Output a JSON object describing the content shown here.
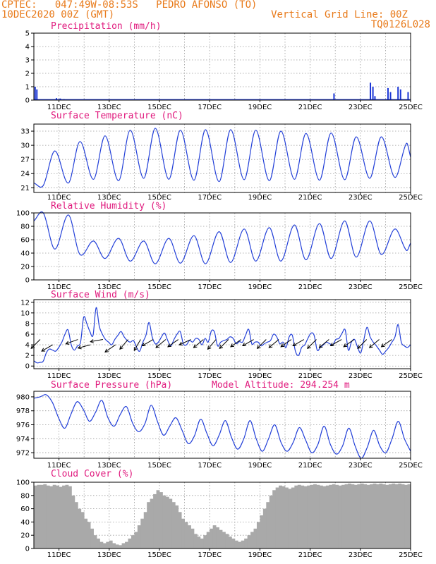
{
  "header": {
    "station": "CPTEC:   047:49W-08:53S   PEDRO AFONSO (TO)",
    "date": "10DEC2020 00Z (GMT)",
    "grid_note": "Vertical Grid Line: 00Z",
    "model_code": "TQ0126L028"
  },
  "colors": {
    "header": "#e87a1a",
    "title": "#e0197d",
    "line": "#2340d8",
    "bar": "#1a35d6",
    "cloud": "#a9a9a9"
  },
  "chart_data": [
    {
      "type": "bar",
      "title": "Precipitation (mm/h)",
      "ylim": [
        0,
        5
      ],
      "yticks": [
        "0",
        "1",
        "2",
        "3",
        "4",
        "5"
      ],
      "xticks": [
        "11DEC",
        "13DEC",
        "15DEC",
        "17DEC",
        "19DEC",
        "21DEC",
        "23DEC",
        "25DEC"
      ],
      "x_start": "10DEC2020 00Z",
      "x_end": "25DEC2020 00Z",
      "x_step_hours": 3,
      "grid": true,
      "bars": [
        {
          "day": 0.05,
          "value": 1.0
        },
        {
          "day": 0.12,
          "value": 0.8
        },
        {
          "day": 0.9,
          "value": 0.15
        },
        {
          "day": 1.05,
          "value": 0.12
        },
        {
          "day": 1.2,
          "value": 0.08
        },
        {
          "day": 11.95,
          "value": 0.5
        },
        {
          "day": 13.4,
          "value": 1.3
        },
        {
          "day": 13.5,
          "value": 1.0
        },
        {
          "day": 13.58,
          "value": 0.3
        },
        {
          "day": 14.1,
          "value": 0.9
        },
        {
          "day": 14.2,
          "value": 0.6
        },
        {
          "day": 14.5,
          "value": 1.0
        },
        {
          "day": 14.6,
          "value": 0.8
        },
        {
          "day": 14.9,
          "value": 0.6
        }
      ]
    },
    {
      "type": "line",
      "title": "Surface Temperature (nC)",
      "ylim": [
        20,
        34.5
      ],
      "yticks": [
        21,
        24,
        27,
        30,
        33
      ],
      "xticks": [
        "11DEC",
        "13DEC",
        "15DEC",
        "17DEC",
        "19DEC",
        "21DEC",
        "23DEC",
        "25DEC"
      ],
      "x_start": "10DEC2020 00Z",
      "x_end": "25DEC2020 00Z",
      "grid": true,
      "series": [
        {
          "min": [
            21.5,
            22.0,
            22.8,
            22.5,
            23.0,
            22.8,
            22.6,
            22.3,
            22.7,
            22.5,
            22.8,
            22.6,
            22.7,
            23.0,
            23.2
          ],
          "max": [
            28.8,
            30.8,
            32.0,
            33.2,
            33.6,
            33.2,
            33.3,
            33.3,
            33.2,
            33.0,
            32.5,
            32.6,
            31.8,
            31.8,
            30.4
          ]
        }
      ]
    },
    {
      "type": "line",
      "title": "Relative Humidity (%)",
      "ylim": [
        0,
        100
      ],
      "yticks": [
        0,
        20,
        40,
        60,
        80,
        100
      ],
      "xticks": [
        "11DEC",
        "13DEC",
        "15DEC",
        "17DEC",
        "19DEC",
        "21DEC",
        "23DEC",
        "25DEC"
      ],
      "x_start": "10DEC2020 00Z",
      "x_end": "25DEC2020 00Z",
      "grid": true,
      "series": [
        {
          "min": [
            46,
            38,
            32,
            28,
            24,
            25,
            24,
            26,
            28,
            28,
            30,
            32,
            34,
            38,
            44
          ],
          "max": [
            100,
            97,
            58,
            62,
            58,
            62,
            66,
            72,
            76,
            78,
            82,
            84,
            88,
            88,
            76
          ]
        }
      ]
    },
    {
      "type": "line",
      "title": "Surface Wind (m/s)",
      "ylim": [
        -0.5,
        12.5
      ],
      "yticks": [
        0,
        2,
        4,
        6,
        8,
        10,
        12
      ],
      "xticks": [
        "11DEC",
        "13DEC",
        "15DEC",
        "17DEC",
        "19DEC",
        "21DEC",
        "23DEC",
        "25DEC"
      ],
      "x_start": "10DEC2020 00Z",
      "x_end": "25DEC2020 00Z",
      "grid": true,
      "series": [
        {
          "values": [
            1.0,
            0.6,
            0.7,
            0.9,
            2.5,
            3.2,
            3.0,
            2.8,
            3.5,
            4.5,
            6.0,
            6.8,
            4.0,
            3.0,
            3.8,
            4.5,
            9.2,
            8.0,
            6.5,
            5.8,
            11.0,
            7.5,
            6.0,
            5.0,
            4.5,
            4.0,
            5.0,
            5.8,
            6.5,
            5.5,
            4.8,
            4.5,
            4.8,
            3.5,
            2.8,
            4.5,
            5.8,
            8.2,
            5.5,
            4.2,
            4.5,
            5.5,
            6.2,
            4.8,
            3.8,
            5.0,
            6.0,
            6.5,
            4.2,
            4.0,
            4.8,
            4.5,
            5.2,
            5.0,
            4.0,
            5.2,
            4.5,
            6.6,
            6.4,
            3.8,
            4.5,
            4.8,
            5.0,
            5.5,
            5.2,
            4.2,
            4.6,
            4.5,
            5.8,
            6.9,
            4.2,
            4.5,
            4.5,
            3.8,
            4.2,
            4.5,
            4.8,
            6.0,
            5.5,
            4.2,
            4.5,
            3.5,
            5.5,
            5.8,
            2.8,
            2.0,
            3.5,
            4.0,
            5.2,
            6.2,
            5.8,
            3.0,
            3.5,
            4.0,
            4.5,
            4.2,
            4.0,
            5.0,
            5.2,
            6.2,
            6.8,
            3.0,
            4.5,
            5.0,
            3.5,
            2.5,
            5.0,
            7.3,
            5.5,
            4.5,
            3.8,
            3.0,
            2.2,
            2.8,
            3.5,
            4.5,
            5.5,
            7.8,
            4.5,
            3.8,
            3.5,
            4.0
          ]
        }
      ],
      "arrows": [
        {
          "day": 0.25,
          "speed": 5,
          "dir_deg": 225
        },
        {
          "day": 0.75,
          "speed": 4,
          "dir_deg": 210
        },
        {
          "day": 1.75,
          "speed": 5,
          "dir_deg": 200
        },
        {
          "day": 2.25,
          "speed": 4,
          "dir_deg": 195
        },
        {
          "day": 2.75,
          "speed": 5,
          "dir_deg": 190
        },
        {
          "day": 3.25,
          "speed": 4,
          "dir_deg": 215
        },
        {
          "day": 3.75,
          "speed": 5,
          "dir_deg": 230
        },
        {
          "day": 4.25,
          "speed": 5,
          "dir_deg": 240
        },
        {
          "day": 4.75,
          "speed": 5,
          "dir_deg": 210
        },
        {
          "day": 5.25,
          "speed": 5,
          "dir_deg": 220
        },
        {
          "day": 5.75,
          "speed": 5,
          "dir_deg": 215
        },
        {
          "day": 6.25,
          "speed": 5,
          "dir_deg": 205
        },
        {
          "day": 6.75,
          "speed": 5,
          "dir_deg": 220
        },
        {
          "day": 7.25,
          "speed": 5,
          "dir_deg": 230
        },
        {
          "day": 7.75,
          "speed": 5,
          "dir_deg": 225
        },
        {
          "day": 8.25,
          "speed": 5,
          "dir_deg": 215
        },
        {
          "day": 8.75,
          "speed": 5,
          "dir_deg": 210
        },
        {
          "day": 9.25,
          "speed": 5,
          "dir_deg": 225
        },
        {
          "day": 9.75,
          "speed": 5,
          "dir_deg": 220
        },
        {
          "day": 10.25,
          "speed": 5,
          "dir_deg": 215
        },
        {
          "day": 10.75,
          "speed": 5,
          "dir_deg": 210
        },
        {
          "day": 11.25,
          "speed": 5,
          "dir_deg": 225
        },
        {
          "day": 11.75,
          "speed": 5,
          "dir_deg": 220
        },
        {
          "day": 12.25,
          "speed": 5,
          "dir_deg": 210
        },
        {
          "day": 12.75,
          "speed": 5,
          "dir_deg": 215
        },
        {
          "day": 13.25,
          "speed": 5,
          "dir_deg": 225
        },
        {
          "day": 13.75,
          "speed": 5,
          "dir_deg": 220
        },
        {
          "day": 14.25,
          "speed": 5,
          "dir_deg": 215
        }
      ]
    },
    {
      "type": "line",
      "title": "Surface Pressure (hPa)",
      "annotation": "Model Altitude: 294.254  m",
      "ylim": [
        971.2,
        980.8
      ],
      "yticks": [
        972,
        974,
        976,
        978,
        980
      ],
      "xticks": [
        "11DEC",
        "13DEC",
        "15DEC",
        "17DEC",
        "19DEC",
        "21DEC",
        "23DEC",
        "25DEC"
      ],
      "x_start": "10DEC2020 00Z",
      "x_end": "25DEC2020 00Z",
      "grid": true,
      "series": [
        {
          "values": [
            979.8,
            980.0,
            980.3,
            979.2,
            977.0,
            975.5,
            977.5,
            979.3,
            978.2,
            976.5,
            977.8,
            979.5,
            977.0,
            975.8,
            977.5,
            978.6,
            976.2,
            975.0,
            976.2,
            978.8,
            976.5,
            974.5,
            975.8,
            977.0,
            975.2,
            973.3,
            974.4,
            976.8,
            974.8,
            973.0,
            974.5,
            976.6,
            974.2,
            972.5,
            974.0,
            976.6,
            974.0,
            972.2,
            974.0,
            976.0,
            973.5,
            972.2,
            973.5,
            975.6,
            973.8,
            972.0,
            973.2,
            975.8,
            973.2,
            971.8,
            973.0,
            975.5,
            973.0,
            971.2,
            972.8,
            975.2,
            973.0,
            972.0,
            974.0,
            976.5,
            974.0,
            972.2
          ]
        }
      ]
    },
    {
      "type": "area",
      "title": "Cloud Cover (%)",
      "ylim": [
        0,
        100
      ],
      "yticks": [
        0,
        20,
        40,
        60,
        80,
        100
      ],
      "xticks": [
        "11DEC",
        "13DEC",
        "15DEC",
        "17DEC",
        "19DEC",
        "21DEC",
        "23DEC",
        "25DEC"
      ],
      "x_start": "10DEC2020 00Z",
      "x_end": "25DEC2020 00Z",
      "grid": true,
      "series": [
        {
          "values": [
            95,
            96,
            96,
            97,
            95,
            94,
            96,
            95,
            93,
            95,
            96,
            94,
            80,
            70,
            60,
            55,
            45,
            40,
            30,
            20,
            15,
            10,
            8,
            10,
            12,
            8,
            6,
            5,
            8,
            10,
            15,
            20,
            25,
            35,
            45,
            55,
            70,
            75,
            82,
            88,
            85,
            80,
            78,
            75,
            70,
            65,
            55,
            45,
            40,
            35,
            30,
            22,
            18,
            15,
            20,
            25,
            30,
            35,
            32,
            28,
            25,
            22,
            18,
            15,
            12,
            10,
            12,
            15,
            20,
            25,
            30,
            40,
            50,
            60,
            70,
            80,
            88,
            92,
            95,
            94,
            92,
            90,
            92,
            95,
            96,
            95,
            94,
            95,
            96,
            97,
            96,
            95,
            94,
            95,
            96,
            97,
            96,
            95,
            96,
            97,
            98,
            97,
            96,
            97,
            98,
            97,
            96,
            97,
            98,
            97,
            98,
            97,
            96,
            97,
            98,
            97,
            98,
            97,
            96,
            97
          ]
        }
      ]
    }
  ]
}
